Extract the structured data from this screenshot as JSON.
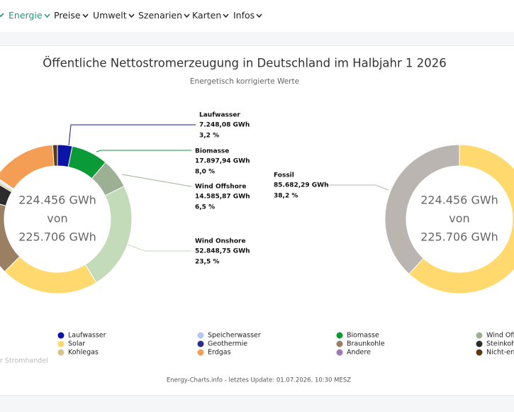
{
  "nav": {
    "items": [
      "Energie",
      "Preise",
      "Umwelt",
      "Szenarien",
      "Karten",
      "Infos"
    ]
  },
  "header": {
    "title": "Öffentliche Nettostromerzeugung in Deutschland im Halbjahr 1 2026",
    "subtitle": "Energetisch korrigierte Werte"
  },
  "chart_data": [
    {
      "type": "donut",
      "center_text": [
        "224.456 GWh",
        "von",
        "225.706 GWh"
      ],
      "series": [
        {
          "name": "Laufwasser",
          "color": "#0b14a6",
          "value": 7248.08,
          "value_label": "7.248,08 GWh",
          "percent": 3.2,
          "percent_label": "3,2 %"
        },
        {
          "name": "Biomasse",
          "color": "#0a9a38",
          "value": 17897.94,
          "value_label": "17.897,94 GWh",
          "percent": 8.0,
          "percent_label": "8,0 %"
        },
        {
          "name": "Wind Offshore",
          "color": "#9cb194",
          "value": 14585.87,
          "value_label": "14.585,87 GWh",
          "percent": 6.5,
          "percent_label": "6,5 %"
        },
        {
          "name": "Wind Onshore",
          "color": "#c3dbb8",
          "value": 52848.75,
          "value_label": "52.848,75 GWh",
          "percent": 23.5,
          "percent_label": "23,5 %"
        },
        {
          "name": "Solar",
          "color": "#ffd86e",
          "value": 47800
        },
        {
          "name": "Braunkohle",
          "color": "#9a7f63",
          "value": 37000
        },
        {
          "name": "Steinkohle",
          "color": "#2c2c2c",
          "value": 10100
        },
        {
          "name": "Kohlegas",
          "color": "#d6c48a",
          "value": 1100
        },
        {
          "name": "Speicherwasser",
          "color": "#b4c8ef",
          "value": 700
        },
        {
          "name": "Geothermie",
          "color": "#2b2f8a",
          "value": 100
        },
        {
          "name": "Andere",
          "color": "#9a7bb4",
          "value": 500
        },
        {
          "name": "Erdgas",
          "color": "#f49d54",
          "value": 32300
        },
        {
          "name": "Nicht-erneuerbarer Abfall",
          "color": "#5a3a15",
          "value": 2276
        }
      ]
    },
    {
      "type": "donut",
      "center_text": [
        "224.456 GWh",
        "von",
        "225.706 GWh"
      ],
      "series": [
        {
          "color": "#ffd86e",
          "value": 138774
        },
        {
          "name": "Fossil",
          "color": "#bab5b0",
          "value": 85682.29,
          "value_label": "85.682,29 GWh",
          "percent": 38.2,
          "percent_label": "38,2 %"
        }
      ]
    }
  ],
  "side_note": "r Stromhandel",
  "footer": "Energy-Charts.info - letztes Update: 01.07.2026, 10:30 MESZ"
}
